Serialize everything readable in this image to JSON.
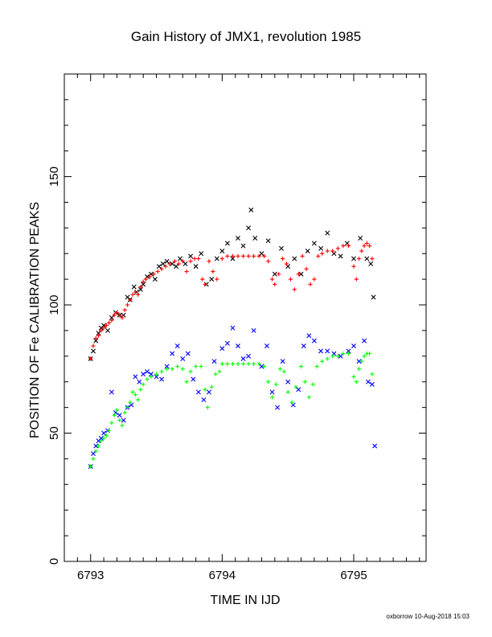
{
  "chart_data": {
    "type": "scatter",
    "title": "Gain History of JMX1, revolution 1985",
    "xlabel": "TIME IN IJD",
    "ylabel": "POSITION OF Fe CALIBRATION PEAKS",
    "xlim": [
      6792.8,
      6795.55
    ],
    "ylim": [
      0,
      190
    ],
    "x_ticks": [
      6793,
      6794,
      6795
    ],
    "x_tick_labels": [
      "6793",
      "6794",
      "6795"
    ],
    "y_ticks": [
      0,
      50,
      100,
      150
    ],
    "y_tick_labels": [
      "0",
      "50",
      "100",
      "150"
    ],
    "grid": false,
    "legend": "none",
    "series": [
      {
        "marker": "x",
        "color": "#000000",
        "points": [
          [
            6793.0,
            79
          ],
          [
            6793.02,
            82
          ],
          [
            6793.04,
            86
          ],
          [
            6793.06,
            89
          ],
          [
            6793.08,
            91
          ],
          [
            6793.1,
            92
          ],
          [
            6793.13,
            90
          ],
          [
            6793.16,
            95
          ],
          [
            6793.19,
            97
          ],
          [
            6793.22,
            96
          ],
          [
            6793.25,
            96
          ],
          [
            6793.28,
            103
          ],
          [
            6793.3,
            102
          ],
          [
            6793.33,
            107
          ],
          [
            6793.35,
            105
          ],
          [
            6793.38,
            106
          ],
          [
            6793.4,
            108
          ],
          [
            6793.43,
            111
          ],
          [
            6793.46,
            112
          ],
          [
            6793.49,
            110
          ],
          [
            6793.52,
            115
          ],
          [
            6793.55,
            116
          ],
          [
            6793.58,
            117
          ],
          [
            6793.62,
            116
          ],
          [
            6793.65,
            115
          ],
          [
            6793.68,
            118
          ],
          [
            6793.72,
            116
          ],
          [
            6793.76,
            119
          ],
          [
            6793.8,
            115
          ],
          [
            6793.84,
            120
          ],
          [
            6793.88,
            108
          ],
          [
            6793.92,
            110
          ],
          [
            6793.96,
            118
          ],
          [
            6794.0,
            121
          ],
          [
            6794.04,
            124
          ],
          [
            6794.08,
            118
          ],
          [
            6794.12,
            126
          ],
          [
            6794.16,
            123
          ],
          [
            6794.2,
            130
          ],
          [
            6794.22,
            137
          ],
          [
            6794.25,
            126
          ],
          [
            6794.3,
            120
          ],
          [
            6794.35,
            125
          ],
          [
            6794.4,
            112
          ],
          [
            6794.45,
            122
          ],
          [
            6794.5,
            115
          ],
          [
            6794.55,
            118
          ],
          [
            6794.6,
            112
          ],
          [
            6794.65,
            121
          ],
          [
            6794.7,
            124
          ],
          [
            6794.75,
            122
          ],
          [
            6794.8,
            128
          ],
          [
            6794.85,
            120
          ],
          [
            6794.9,
            119
          ],
          [
            6794.95,
            124
          ],
          [
            6795.0,
            118
          ],
          [
            6795.05,
            126
          ],
          [
            6795.1,
            118
          ],
          [
            6795.13,
            116
          ],
          [
            6795.15,
            103
          ]
        ]
      },
      {
        "marker": "+",
        "color": "#ff0000",
        "points": [
          [
            6793.0,
            79
          ],
          [
            6793.02,
            84
          ],
          [
            6793.04,
            87
          ],
          [
            6793.06,
            88
          ],
          [
            6793.08,
            90
          ],
          [
            6793.1,
            91
          ],
          [
            6793.12,
            92
          ],
          [
            6793.14,
            93
          ],
          [
            6793.16,
            94
          ],
          [
            6793.18,
            96
          ],
          [
            6793.2,
            97
          ],
          [
            6793.22,
            96
          ],
          [
            6793.24,
            95
          ],
          [
            6793.26,
            98
          ],
          [
            6793.28,
            100
          ],
          [
            6793.3,
            102
          ],
          [
            6793.32,
            104
          ],
          [
            6793.34,
            105
          ],
          [
            6793.36,
            104
          ],
          [
            6793.38,
            107
          ],
          [
            6793.4,
            109
          ],
          [
            6793.42,
            110
          ],
          [
            6793.45,
            111
          ],
          [
            6793.48,
            112
          ],
          [
            6793.51,
            113
          ],
          [
            6793.54,
            114
          ],
          [
            6793.57,
            115
          ],
          [
            6793.6,
            116
          ],
          [
            6793.64,
            117
          ],
          [
            6793.67,
            116
          ],
          [
            6793.7,
            117
          ],
          [
            6793.73,
            113
          ],
          [
            6793.76,
            117
          ],
          [
            6793.79,
            118
          ],
          [
            6793.82,
            118
          ],
          [
            6793.85,
            110
          ],
          [
            6793.87,
            108
          ],
          [
            6793.9,
            117
          ],
          [
            6793.93,
            113
          ],
          [
            6793.96,
            110
          ],
          [
            6794.0,
            118
          ],
          [
            6794.04,
            119
          ],
          [
            6794.08,
            119
          ],
          [
            6794.12,
            119
          ],
          [
            6794.16,
            119
          ],
          [
            6794.2,
            119
          ],
          [
            6794.24,
            119
          ],
          [
            6794.28,
            119
          ],
          [
            6794.32,
            119
          ],
          [
            6794.35,
            117
          ],
          [
            6794.38,
            110
          ],
          [
            6794.4,
            108
          ],
          [
            6794.43,
            112
          ],
          [
            6794.46,
            118
          ],
          [
            6794.49,
            116
          ],
          [
            6794.52,
            110
          ],
          [
            6794.55,
            106
          ],
          [
            6794.58,
            112
          ],
          [
            6794.61,
            119
          ],
          [
            6794.64,
            114
          ],
          [
            6794.67,
            108
          ],
          [
            6794.7,
            110
          ],
          [
            6794.73,
            119
          ],
          [
            6794.76,
            120
          ],
          [
            6794.8,
            121
          ],
          [
            6794.84,
            121
          ],
          [
            6794.88,
            122
          ],
          [
            6794.92,
            123
          ],
          [
            6794.96,
            123
          ],
          [
            6795.0,
            115
          ],
          [
            6795.02,
            110
          ],
          [
            6795.04,
            118
          ],
          [
            6795.06,
            121
          ],
          [
            6795.08,
            123
          ],
          [
            6795.1,
            124
          ],
          [
            6795.12,
            123
          ],
          [
            6795.14,
            118
          ]
        ]
      },
      {
        "marker": "x",
        "color": "#0000ff",
        "points": [
          [
            6793.0,
            37
          ],
          [
            6793.02,
            42
          ],
          [
            6793.04,
            45
          ],
          [
            6793.06,
            47
          ],
          [
            6793.08,
            48
          ],
          [
            6793.1,
            50
          ],
          [
            6793.13,
            51
          ],
          [
            6793.16,
            66
          ],
          [
            6793.19,
            58
          ],
          [
            6793.22,
            57
          ],
          [
            6793.25,
            55
          ],
          [
            6793.28,
            60
          ],
          [
            6793.31,
            61
          ],
          [
            6793.34,
            72
          ],
          [
            6793.37,
            70
          ],
          [
            6793.4,
            73
          ],
          [
            6793.43,
            74
          ],
          [
            6793.46,
            73
          ],
          [
            6793.5,
            72
          ],
          [
            6793.54,
            71
          ],
          [
            6793.58,
            76
          ],
          [
            6793.62,
            81
          ],
          [
            6793.66,
            84
          ],
          [
            6793.7,
            79
          ],
          [
            6793.74,
            81
          ],
          [
            6793.78,
            71
          ],
          [
            6793.82,
            66
          ],
          [
            6793.86,
            63
          ],
          [
            6793.9,
            66
          ],
          [
            6793.94,
            78
          ],
          [
            6794.0,
            83
          ],
          [
            6794.04,
            85
          ],
          [
            6794.08,
            91
          ],
          [
            6794.12,
            84
          ],
          [
            6794.16,
            79
          ],
          [
            6794.2,
            80
          ],
          [
            6794.24,
            90
          ],
          [
            6794.3,
            76
          ],
          [
            6794.34,
            84
          ],
          [
            6794.38,
            66
          ],
          [
            6794.42,
            60
          ],
          [
            6794.46,
            78
          ],
          [
            6794.5,
            70
          ],
          [
            6794.54,
            61
          ],
          [
            6794.58,
            67
          ],
          [
            6794.62,
            84
          ],
          [
            6794.66,
            88
          ],
          [
            6794.7,
            86
          ],
          [
            6794.75,
            82
          ],
          [
            6794.8,
            82
          ],
          [
            6794.85,
            81
          ],
          [
            6794.9,
            80
          ],
          [
            6794.96,
            82
          ],
          [
            6795.0,
            84
          ],
          [
            6795.04,
            78
          ],
          [
            6795.08,
            86
          ],
          [
            6795.11,
            70
          ],
          [
            6795.14,
            69
          ],
          [
            6795.16,
            45
          ]
        ]
      },
      {
        "marker": "+",
        "color": "#00ff00",
        "points": [
          [
            6793.0,
            37
          ],
          [
            6793.02,
            40
          ],
          [
            6793.04,
            43
          ],
          [
            6793.06,
            45
          ],
          [
            6793.08,
            47
          ],
          [
            6793.1,
            48
          ],
          [
            6793.12,
            49
          ],
          [
            6793.14,
            51
          ],
          [
            6793.16,
            54
          ],
          [
            6793.18,
            57
          ],
          [
            6793.2,
            59
          ],
          [
            6793.22,
            55
          ],
          [
            6793.24,
            53
          ],
          [
            6793.26,
            58
          ],
          [
            6793.28,
            60
          ],
          [
            6793.3,
            62
          ],
          [
            6793.32,
            66
          ],
          [
            6793.34,
            65
          ],
          [
            6793.36,
            63
          ],
          [
            6793.38,
            67
          ],
          [
            6793.4,
            69
          ],
          [
            6793.43,
            71
          ],
          [
            6793.46,
            72
          ],
          [
            6793.5,
            73
          ],
          [
            6793.54,
            74
          ],
          [
            6793.58,
            75
          ],
          [
            6793.62,
            75
          ],
          [
            6793.66,
            76
          ],
          [
            6793.7,
            75
          ],
          [
            6793.73,
            70
          ],
          [
            6793.76,
            74
          ],
          [
            6793.8,
            76
          ],
          [
            6793.84,
            76
          ],
          [
            6793.87,
            67
          ],
          [
            6793.89,
            60
          ],
          [
            6793.92,
            68
          ],
          [
            6793.95,
            73
          ],
          [
            6793.98,
            74
          ],
          [
            6794.0,
            77
          ],
          [
            6794.04,
            77
          ],
          [
            6794.08,
            77
          ],
          [
            6794.12,
            77
          ],
          [
            6794.16,
            77
          ],
          [
            6794.2,
            77
          ],
          [
            6794.24,
            77
          ],
          [
            6794.28,
            77
          ],
          [
            6794.32,
            76
          ],
          [
            6794.35,
            70
          ],
          [
            6794.38,
            64
          ],
          [
            6794.41,
            69
          ],
          [
            6794.44,
            75
          ],
          [
            6794.47,
            74
          ],
          [
            6794.5,
            66
          ],
          [
            6794.53,
            62
          ],
          [
            6794.56,
            68
          ],
          [
            6794.6,
            76
          ],
          [
            6794.63,
            70
          ],
          [
            6794.66,
            64
          ],
          [
            6794.69,
            69
          ],
          [
            6794.72,
            76
          ],
          [
            6794.76,
            78
          ],
          [
            6794.8,
            79
          ],
          [
            6794.84,
            80
          ],
          [
            6794.88,
            80
          ],
          [
            6794.92,
            81
          ],
          [
            6794.96,
            81
          ],
          [
            6795.0,
            72
          ],
          [
            6795.02,
            70
          ],
          [
            6795.04,
            75
          ],
          [
            6795.06,
            78
          ],
          [
            6795.08,
            80
          ],
          [
            6795.1,
            81
          ],
          [
            6795.12,
            81
          ],
          [
            6795.14,
            73
          ]
        ]
      }
    ]
  },
  "footer": "oxborrow 10-Aug-2018 15:03"
}
